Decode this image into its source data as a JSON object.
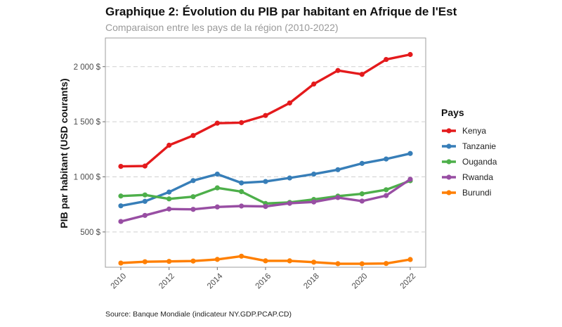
{
  "chart_data": {
    "type": "line",
    "title": "Graphique 2: Évolution du PIB par habitant en Afrique de l'Est",
    "subtitle": "Comparaison entre les pays de la région (2010-2022)",
    "xlabel": "",
    "ylabel": "PIB par habitant (USD courants)",
    "x": [
      2010,
      2011,
      2012,
      2013,
      2014,
      2015,
      2016,
      2017,
      2018,
      2019,
      2020,
      2021,
      2022
    ],
    "x_ticks": [
      "2010",
      "2012",
      "2014",
      "2016",
      "2018",
      "2020",
      "2022"
    ],
    "x_tick_values": [
      2010,
      2012,
      2014,
      2016,
      2018,
      2020,
      2022
    ],
    "y_ticks": [
      "500 $",
      "1 000 $",
      "1 500 $",
      "2 000 $"
    ],
    "y_tick_values": [
      500,
      1000,
      1500,
      2000
    ],
    "xlim": [
      2010,
      2022
    ],
    "ylim": [
      180,
      2260
    ],
    "grid": "horizontal-dashed",
    "legend_title": "Pays",
    "legend_position": "right",
    "series": [
      {
        "name": "Kenya",
        "color": "#e41a1c",
        "values": [
          1095,
          1098,
          1287,
          1375,
          1487,
          1492,
          1557,
          1670,
          1842,
          1965,
          1930,
          2065,
          2110
        ]
      },
      {
        "name": "Tanzanie",
        "color": "#377eb8",
        "values": [
          737,
          778,
          862,
          966,
          1025,
          945,
          958,
          990,
          1025,
          1065,
          1122,
          1162,
          1212
        ]
      },
      {
        "name": "Ouganda",
        "color": "#4daf4a",
        "values": [
          826,
          836,
          800,
          820,
          900,
          866,
          758,
          768,
          795,
          825,
          846,
          883,
          965
        ]
      },
      {
        "name": "Rwanda",
        "color": "#984ea3",
        "values": [
          595,
          650,
          708,
          705,
          727,
          735,
          731,
          760,
          772,
          812,
          780,
          830,
          978
        ]
      },
      {
        "name": "Burundi",
        "color": "#ff7f00",
        "values": [
          218,
          230,
          233,
          236,
          251,
          280,
          238,
          238,
          226,
          212,
          211,
          214,
          250
        ]
      }
    ],
    "caption": "Source: Banque Mondiale (indicateur NY.GDP.PCAP.CD)"
  }
}
